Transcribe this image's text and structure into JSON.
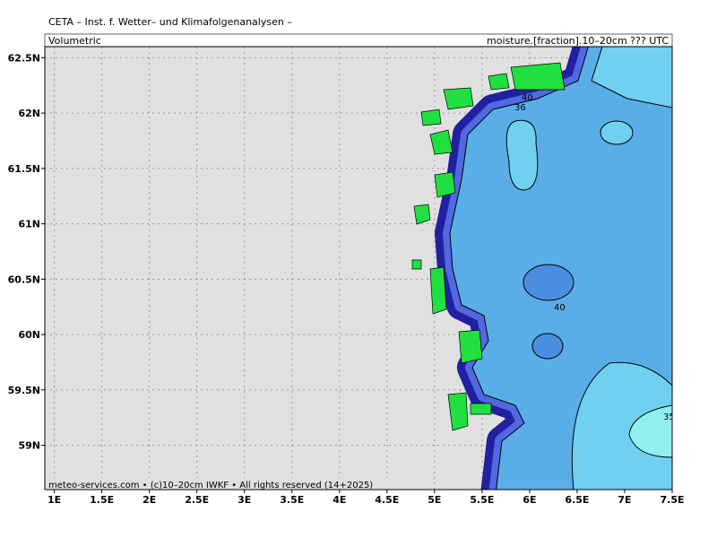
{
  "header": {
    "title": "CETA – Inst. f. Wetter– und Klimafolgenanalysen –",
    "left": "Volumetric",
    "right": "moisture.[fraction].10–20cm ??? UTC"
  },
  "footer": "meteo-services.com • (c)10–20cm IWKF • All rights reserved (14+2025)",
  "map": {
    "xlim": [
      0.9,
      7.5
    ],
    "ylim": [
      58.6,
      62.6
    ],
    "xticks": [
      {
        "value": 1,
        "label": "1E"
      },
      {
        "value": 1.5,
        "label": "1.5E"
      },
      {
        "value": 2,
        "label": "2E"
      },
      {
        "value": 2.5,
        "label": "2.5E"
      },
      {
        "value": 3,
        "label": "3E"
      },
      {
        "value": 3.5,
        "label": "3.5E"
      },
      {
        "value": 4,
        "label": "4E"
      },
      {
        "value": 4.5,
        "label": "4.5E"
      },
      {
        "value": 5,
        "label": "5E"
      },
      {
        "value": 5.5,
        "label": "5.5E"
      },
      {
        "value": 6,
        "label": "6E"
      },
      {
        "value": 6.5,
        "label": "6.5E"
      },
      {
        "value": 7,
        "label": "7E"
      },
      {
        "value": 7.5,
        "label": "7.5E"
      }
    ],
    "yticks": [
      {
        "value": 59,
        "label": "59N"
      },
      {
        "value": 59.5,
        "label": "59.5N"
      },
      {
        "value": 60,
        "label": "60N"
      },
      {
        "value": 60.5,
        "label": "60.5N"
      },
      {
        "value": 61,
        "label": "61N"
      },
      {
        "value": 61.5,
        "label": "61.5N"
      },
      {
        "value": 62,
        "label": "62N"
      },
      {
        "value": 62.5,
        "label": "62.5N"
      }
    ],
    "contour_labels": [
      "40",
      "36",
      "40",
      "35"
    ]
  }
}
